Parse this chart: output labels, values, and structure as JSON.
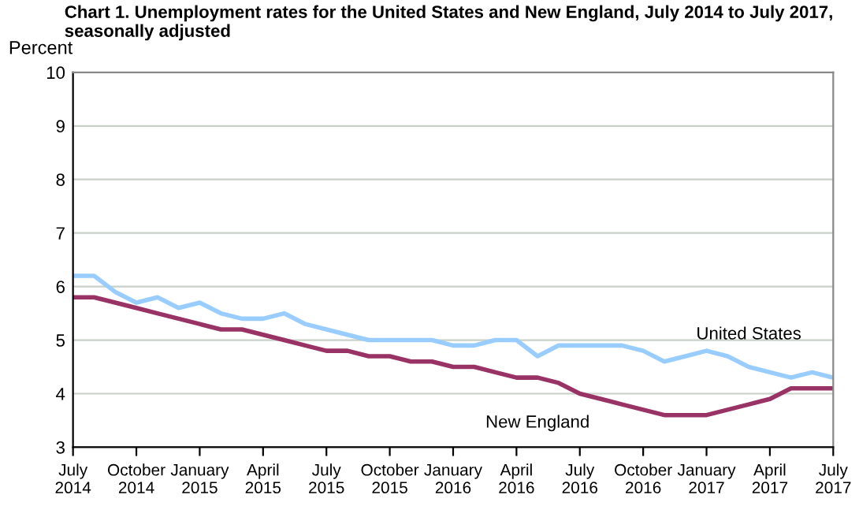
{
  "chart_data": {
    "type": "line",
    "title": "Chart 1. Unemployment rates for the United States and New England, July 2014 to July 2017,\nseasonally adjusted",
    "ylabel": "Percent",
    "categories": [
      "July\n2014",
      null,
      null,
      "October\n2014",
      null,
      null,
      "January\n2015",
      null,
      null,
      "April\n2015",
      null,
      null,
      "July\n2015",
      null,
      null,
      "October\n2015",
      null,
      null,
      "January\n2016",
      null,
      null,
      "April\n2016",
      null,
      null,
      "July\n2016",
      null,
      null,
      "October\n2016",
      null,
      null,
      "January\n2017",
      null,
      null,
      "April\n2017",
      null,
      null,
      "July\n2017"
    ],
    "series": [
      {
        "name": "United States",
        "color": "#99ccff",
        "values": [
          6.2,
          6.2,
          5.9,
          5.7,
          5.8,
          5.6,
          5.7,
          5.5,
          5.4,
          5.4,
          5.5,
          5.3,
          5.2,
          5.1,
          5.0,
          5.0,
          5.0,
          5.0,
          4.9,
          4.9,
          5.0,
          5.0,
          4.7,
          4.9,
          4.9,
          4.9,
          4.9,
          4.8,
          4.6,
          4.7,
          4.8,
          4.7,
          4.5,
          4.4,
          4.3,
          4.4,
          4.3
        ]
      },
      {
        "name": "New England",
        "color": "#993366",
        "values": [
          5.8,
          5.8,
          5.7,
          5.6,
          5.5,
          5.4,
          5.3,
          5.2,
          5.2,
          5.1,
          5.0,
          4.9,
          4.8,
          4.8,
          4.7,
          4.7,
          4.6,
          4.6,
          4.5,
          4.5,
          4.4,
          4.3,
          4.3,
          4.2,
          4.0,
          3.9,
          3.8,
          3.7,
          3.6,
          3.6,
          3.6,
          3.7,
          3.8,
          3.9,
          4.1,
          4.1,
          4.1
        ]
      }
    ],
    "ylim": [
      3,
      10
    ],
    "yticks": [
      3,
      4,
      5,
      6,
      7,
      8,
      9,
      10
    ],
    "grid": "y",
    "legend": false,
    "marker": "none",
    "line_style": "solid"
  }
}
